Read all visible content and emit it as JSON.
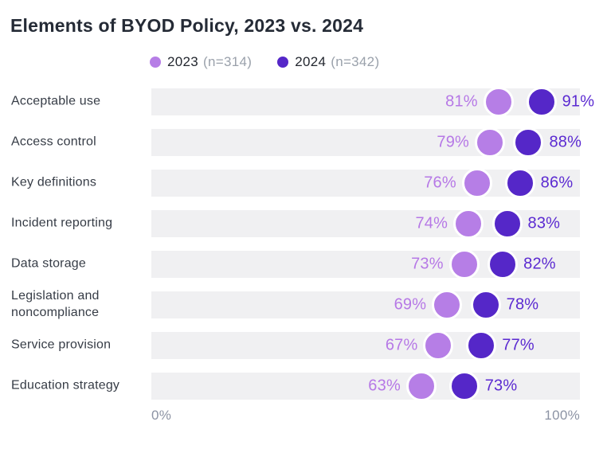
{
  "title": "Elements of BYOD Policy, 2023 vs. 2024",
  "legend": {
    "items": [
      {
        "label": "2023",
        "sample": "(n=314)",
        "color": "#b67ee6"
      },
      {
        "label": "2024",
        "sample": "(n=342)",
        "color": "#5527c8"
      }
    ]
  },
  "axis": {
    "min_label": "0%",
    "max_label": "100%"
  },
  "colors": {
    "series_2023": "#b67ee6",
    "series_2024": "#5527c8",
    "value_text_2023": "#b678e6",
    "value_text_2024": "#5b2ad1",
    "track_background": "#f0f0f2",
    "title_text": "#252b36",
    "category_text": "#363c46",
    "axis_text": "#8c93a4"
  },
  "chart_data": {
    "type": "scatter",
    "subtype": "dumbbell-dot-plot",
    "title": "Elements of BYOD Policy, 2023 vs. 2024",
    "categories": [
      "Acceptable use",
      "Access control",
      "Key definitions",
      "Incident reporting",
      "Data storage",
      "Legislation and noncompliance",
      "Service provision",
      "Education strategy"
    ],
    "series": [
      {
        "name": "2023",
        "sample_size": "(n=314)",
        "color": "#b67ee6",
        "values": [
          81,
          79,
          76,
          74,
          73,
          69,
          67,
          63
        ],
        "labels": [
          "81%",
          "79%",
          "76%",
          "74%",
          "73%",
          "69%",
          "67%",
          "63%"
        ]
      },
      {
        "name": "2024",
        "sample_size": "(n=342)",
        "color": "#5527c8",
        "values": [
          91,
          88,
          86,
          83,
          82,
          78,
          77,
          73
        ],
        "labels": [
          "91%",
          "88%",
          "86%",
          "83%",
          "82%",
          "78%",
          "77%",
          "73%"
        ]
      }
    ],
    "xlim": [
      0,
      100
    ],
    "x_tick_labels": [
      "0%",
      "100%"
    ],
    "value_suffix": "%",
    "grid": false,
    "legend_position": "top"
  }
}
